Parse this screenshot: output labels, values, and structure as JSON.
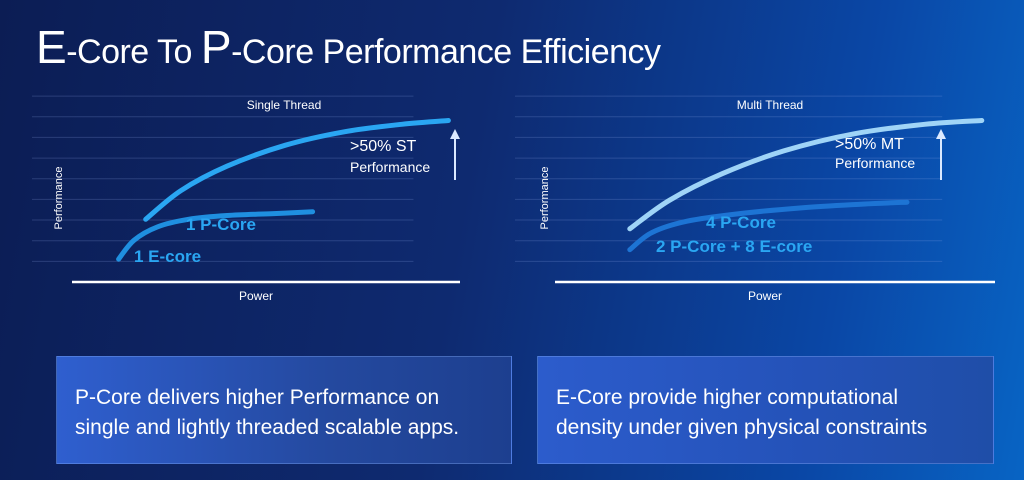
{
  "title": {
    "prefix_big": "E",
    "prefix_rest": "-Core To ",
    "mid_big": "P",
    "suffix": "-Core Performance Efficiency"
  },
  "chart_data": [
    {
      "type": "line",
      "title": "Single Thread",
      "xlabel": "Power",
      "ylabel": "Performance",
      "grid": true,
      "series": [
        {
          "name": "1 P-Core",
          "color": "#2aa6f2",
          "points": [
            [
              0.19,
              0.33
            ],
            [
              0.28,
              0.48
            ],
            [
              0.4,
              0.61
            ],
            [
              0.55,
              0.72
            ],
            [
              0.7,
              0.79
            ],
            [
              0.85,
              0.83
            ],
            [
              0.97,
              0.85
            ]
          ]
        },
        {
          "name": "1 E-core",
          "color": "#1f8fe0",
          "points": [
            [
              0.12,
              0.12
            ],
            [
              0.16,
              0.22
            ],
            [
              0.22,
              0.29
            ],
            [
              0.3,
              0.33
            ],
            [
              0.4,
              0.35
            ],
            [
              0.52,
              0.36
            ],
            [
              0.62,
              0.37
            ]
          ]
        }
      ],
      "annotation": {
        "line1": ">50% ST",
        "line2": "Performance",
        "arrow": "up"
      }
    },
    {
      "type": "line",
      "title": "Multi Thread",
      "xlabel": "Power",
      "ylabel": "Performance",
      "grid": true,
      "series": [
        {
          "name": "2 P-Core + 8 E-core",
          "color": "#9fd4f7",
          "points": [
            [
              0.17,
              0.28
            ],
            [
              0.26,
              0.43
            ],
            [
              0.38,
              0.57
            ],
            [
              0.52,
              0.69
            ],
            [
              0.68,
              0.78
            ],
            [
              0.84,
              0.83
            ],
            [
              0.97,
              0.85
            ]
          ]
        },
        {
          "name": "4 P-Core",
          "color": "#1d74d4",
          "points": [
            [
              0.17,
              0.17
            ],
            [
              0.22,
              0.26
            ],
            [
              0.3,
              0.32
            ],
            [
              0.42,
              0.36
            ],
            [
              0.56,
              0.39
            ],
            [
              0.7,
              0.41
            ],
            [
              0.8,
              0.42
            ]
          ]
        }
      ],
      "annotation": {
        "line1": ">50% MT",
        "line2": "Performance",
        "arrow": "up"
      }
    }
  ],
  "boxes": {
    "left": {
      "line1": "P-Core delivers higher Performance on",
      "line2": "single and lightly threaded scalable apps."
    },
    "right": {
      "line1": "E-Core provide higher computational",
      "line2": "density under given physical constraints"
    }
  }
}
